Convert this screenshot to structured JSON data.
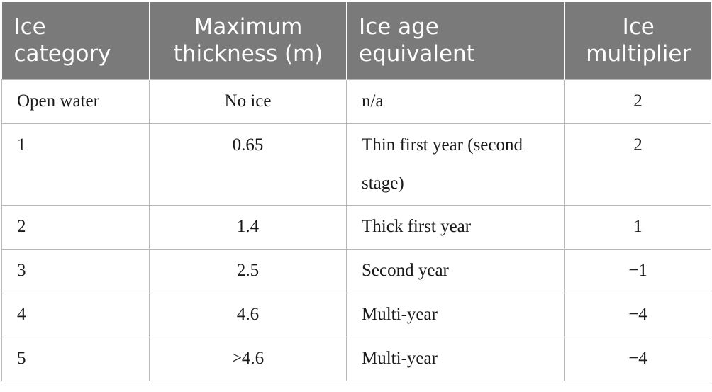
{
  "table": {
    "headers": [
      "Ice category",
      "Maximum thickness (m)",
      "Ice age equivalent",
      "Ice multiplier"
    ],
    "rows": [
      [
        "Open water",
        "No ice",
        "n/a",
        "2"
      ],
      [
        "1",
        "0.65",
        "Thin first year (second stage)",
        "2"
      ],
      [
        "2",
        "1.4",
        "Thick first year",
        "1"
      ],
      [
        "3",
        "2.5",
        "Second year",
        "−1"
      ],
      [
        "4",
        "4.6",
        "Multi-year",
        "−4"
      ],
      [
        "5",
        ">4.6",
        "Multi-year",
        "−4"
      ]
    ],
    "header_color": "#7a7a7a",
    "border_color": "#b7b7b7"
  }
}
